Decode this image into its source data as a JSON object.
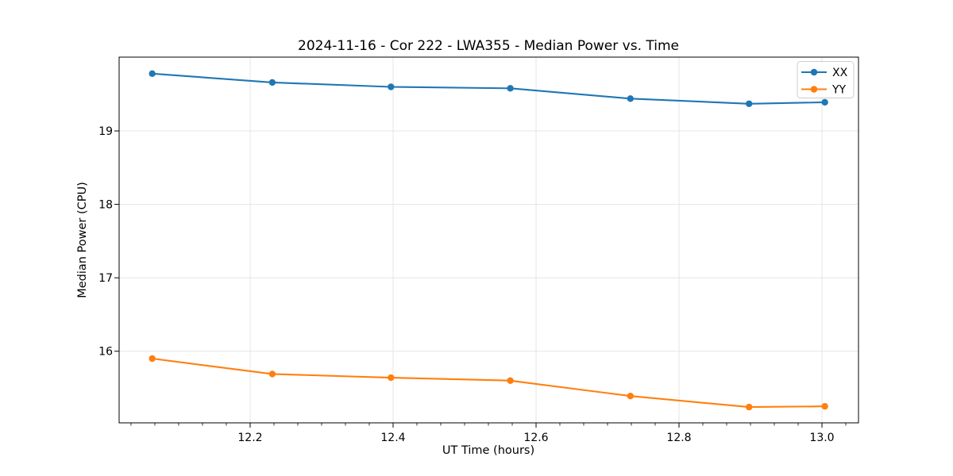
{
  "chart_data": {
    "type": "line",
    "title": "2024-11-16 - Cor 222 - LWA355 - Median Power vs. Time",
    "xlabel": "UT Time (hours)",
    "ylabel": "Median Power (CPU)",
    "xlim": [
      12.0167,
      13.0511
    ],
    "ylim": [
      15.025,
      20.005
    ],
    "xticks": [
      12.2,
      12.4,
      12.6,
      12.8,
      13.0
    ],
    "xtick_labels": [
      "12.2",
      "12.4",
      "12.6",
      "12.8",
      "13.0"
    ],
    "yticks": [
      16,
      17,
      18,
      19
    ],
    "ytick_labels": [
      "16",
      "17",
      "18",
      "19"
    ],
    "x_minor_step": 0.0333333,
    "x_major_step": 0.2,
    "grid": true,
    "legend_position": "upper right",
    "x": [
      12.063,
      12.231,
      12.397,
      12.564,
      12.732,
      12.898,
      13.004
    ],
    "series": [
      {
        "name": "XX",
        "color": "#1f77b4",
        "marker": "circle",
        "values": [
          19.78,
          19.66,
          19.6,
          19.58,
          19.44,
          19.37,
          19.39
        ]
      },
      {
        "name": "YY",
        "color": "#ff7f0e",
        "marker": "circle",
        "values": [
          15.9,
          15.69,
          15.64,
          15.6,
          15.39,
          15.24,
          15.25
        ]
      }
    ],
    "colors": {
      "grid": "#e5e5e5",
      "spine": "#000000",
      "background": "#ffffff"
    }
  }
}
